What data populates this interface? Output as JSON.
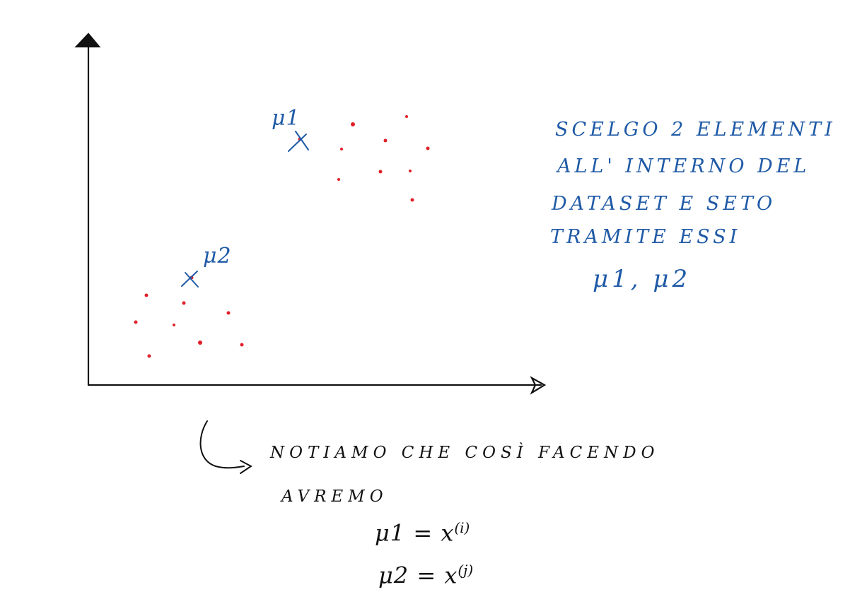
{
  "colors": {
    "axis": "#111111",
    "points": "#e0202a",
    "annotation": "#1f5aa6",
    "note": "#111111"
  },
  "diagram": {
    "cluster_labels": {
      "mu1": "μ1",
      "mu2": "μ2"
    },
    "side_note": {
      "lines": [
        "SCELGO 2 ELEMENTI",
        "ALL' INTERNO DEL",
        "DATASET E SETO",
        "TRAMITE ESSI",
        "μ1, μ2"
      ]
    },
    "bottom_note": {
      "lines": [
        "NOTIAMO CHE COSÌ FACENDO",
        "AVREMO"
      ],
      "equations": [
        {
          "lhs": "μ1 = x",
          "sup": "(i)"
        },
        {
          "lhs": "μ2 = x",
          "sup": "(j)"
        }
      ]
    }
  }
}
